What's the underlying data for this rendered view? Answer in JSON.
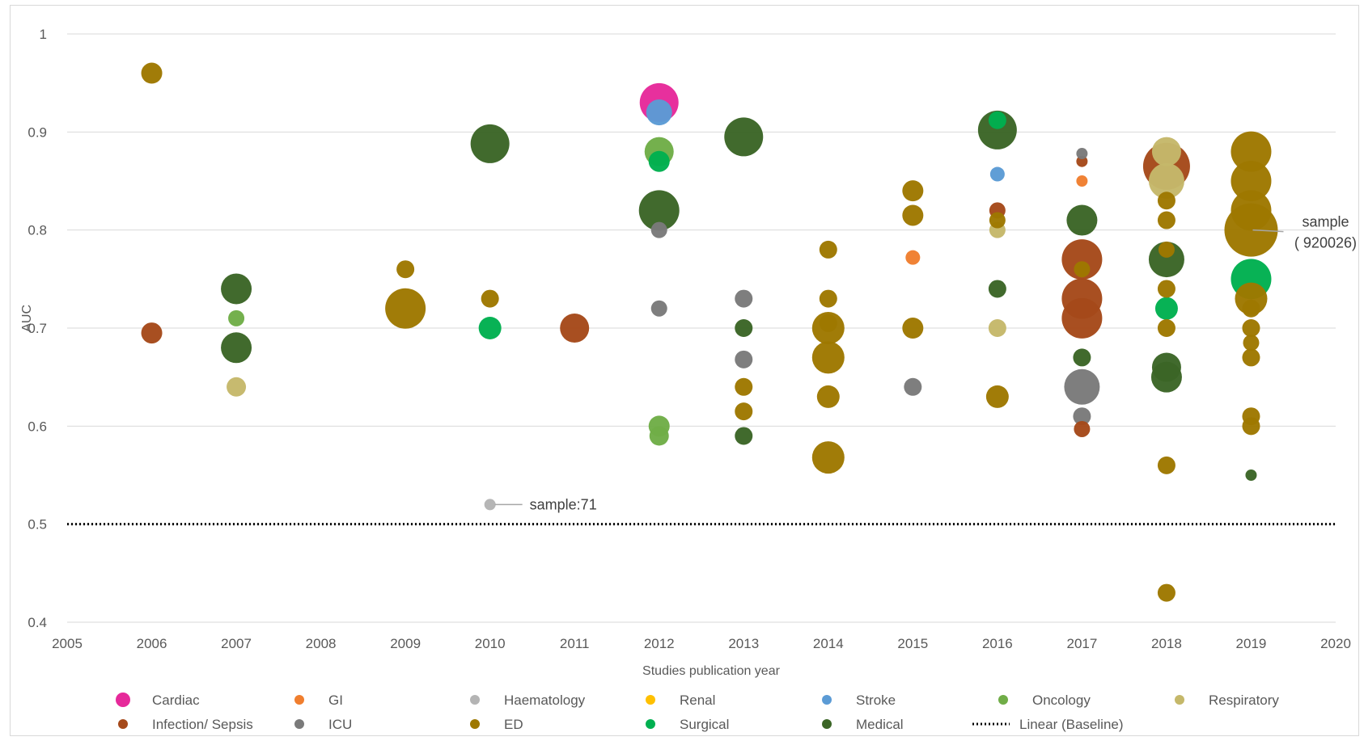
{
  "chart_data": {
    "type": "scatter",
    "xlabel": "Studies publication year",
    "ylabel": "AUC",
    "xlim": [
      2005,
      2020
    ],
    "ylim": [
      0.4,
      1.0
    ],
    "x_ticks": [
      "2005",
      "2006",
      "2007",
      "2008",
      "2009",
      "2010",
      "2011",
      "2012",
      "2013",
      "2014",
      "2015",
      "2016",
      "2017",
      "2018",
      "2019",
      "2020"
    ],
    "y_ticks": [
      "0.4",
      "0.5",
      "0.6",
      "0.7",
      "0.8",
      "0.9",
      "1"
    ],
    "grid": true,
    "legend_position": "bottom",
    "baseline": {
      "name": "Linear (Baseline)",
      "value": 0.5,
      "color": "#000000"
    },
    "series": [
      {
        "name": "Cardiac",
        "color": "#e6299a",
        "points": [
          {
            "x": 2012,
            "y": 0.93,
            "size": 48
          }
        ]
      },
      {
        "name": "GI",
        "color": "#f07e2e",
        "points": [
          {
            "x": 2015,
            "y": 0.772,
            "size": 18
          },
          {
            "x": 2017,
            "y": 0.85,
            "size": 14
          }
        ]
      },
      {
        "name": "Haematology",
        "color": "#b4b4b4",
        "points": [
          {
            "x": 2010,
            "y": 0.52,
            "size": 14
          }
        ]
      },
      {
        "name": "Renal",
        "color": "#ffc000",
        "points": []
      },
      {
        "name": "Stroke",
        "color": "#5b9bd5",
        "points": [
          {
            "x": 2012,
            "y": 0.92,
            "size": 32
          },
          {
            "x": 2016,
            "y": 0.857,
            "size": 18
          }
        ]
      },
      {
        "name": "Oncology",
        "color": "#70ad47",
        "points": [
          {
            "x": 2007,
            "y": 0.71,
            "size": 20
          },
          {
            "x": 2012,
            "y": 0.88,
            "size": 36
          },
          {
            "x": 2012,
            "y": 0.6,
            "size": 26
          },
          {
            "x": 2012,
            "y": 0.59,
            "size": 24
          }
        ]
      },
      {
        "name": "Respiratory",
        "color": "#c5b86a",
        "points": [
          {
            "x": 2007,
            "y": 0.64,
            "size": 24
          },
          {
            "x": 2016,
            "y": 0.8,
            "size": 20
          },
          {
            "x": 2016,
            "y": 0.7,
            "size": 22
          },
          {
            "x": 2018,
            "y": 0.88,
            "size": 36
          },
          {
            "x": 2018,
            "y": 0.85,
            "size": 44
          }
        ]
      },
      {
        "name": "Infection/ Sepsis",
        "color": "#a5491a",
        "points": [
          {
            "x": 2006,
            "y": 0.695,
            "size": 26
          },
          {
            "x": 2011,
            "y": 0.7,
            "size": 36
          },
          {
            "x": 2016,
            "y": 0.82,
            "size": 20
          },
          {
            "x": 2017,
            "y": 0.87,
            "size": 14
          },
          {
            "x": 2017,
            "y": 0.77,
            "size": 50
          },
          {
            "x": 2017,
            "y": 0.73,
            "size": 50
          },
          {
            "x": 2017,
            "y": 0.71,
            "size": 50
          },
          {
            "x": 2017,
            "y": 0.597,
            "size": 20
          },
          {
            "x": 2018,
            "y": 0.865,
            "size": 58
          }
        ]
      },
      {
        "name": "ICU",
        "color": "#7a7a7a",
        "points": [
          {
            "x": 2012,
            "y": 0.8,
            "size": 20
          },
          {
            "x": 2012,
            "y": 0.72,
            "size": 20
          },
          {
            "x": 2013,
            "y": 0.73,
            "size": 22
          },
          {
            "x": 2013,
            "y": 0.668,
            "size": 22
          },
          {
            "x": 2015,
            "y": 0.64,
            "size": 22
          },
          {
            "x": 2017,
            "y": 0.878,
            "size": 14
          },
          {
            "x": 2017,
            "y": 0.64,
            "size": 44
          },
          {
            "x": 2017,
            "y": 0.61,
            "size": 22
          }
        ]
      },
      {
        "name": "ED",
        "color": "#9e7800",
        "points": [
          {
            "x": 2006,
            "y": 0.96,
            "size": 26
          },
          {
            "x": 2009,
            "y": 0.76,
            "size": 22
          },
          {
            "x": 2009,
            "y": 0.72,
            "size": 50
          },
          {
            "x": 2010,
            "y": 0.73,
            "size": 22
          },
          {
            "x": 2013,
            "y": 0.64,
            "size": 22
          },
          {
            "x": 2013,
            "y": 0.615,
            "size": 22
          },
          {
            "x": 2014,
            "y": 0.78,
            "size": 22
          },
          {
            "x": 2014,
            "y": 0.73,
            "size": 22
          },
          {
            "x": 2014,
            "y": 0.705,
            "size": 22
          },
          {
            "x": 2014,
            "y": 0.7,
            "size": 40
          },
          {
            "x": 2014,
            "y": 0.67,
            "size": 40
          },
          {
            "x": 2014,
            "y": 0.63,
            "size": 28
          },
          {
            "x": 2014,
            "y": 0.568,
            "size": 40
          },
          {
            "x": 2015,
            "y": 0.84,
            "size": 26
          },
          {
            "x": 2015,
            "y": 0.815,
            "size": 26
          },
          {
            "x": 2015,
            "y": 0.7,
            "size": 26
          },
          {
            "x": 2016,
            "y": 0.81,
            "size": 20
          },
          {
            "x": 2016,
            "y": 0.63,
            "size": 28
          },
          {
            "x": 2017,
            "y": 0.76,
            "size": 20
          },
          {
            "x": 2018,
            "y": 0.83,
            "size": 22
          },
          {
            "x": 2018,
            "y": 0.81,
            "size": 22
          },
          {
            "x": 2018,
            "y": 0.78,
            "size": 20
          },
          {
            "x": 2018,
            "y": 0.74,
            "size": 22
          },
          {
            "x": 2018,
            "y": 0.7,
            "size": 22
          },
          {
            "x": 2018,
            "y": 0.56,
            "size": 22
          },
          {
            "x": 2018,
            "y": 0.43,
            "size": 22
          },
          {
            "x": 2019,
            "y": 0.88,
            "size": 50
          },
          {
            "x": 2019,
            "y": 0.85,
            "size": 50
          },
          {
            "x": 2019,
            "y": 0.82,
            "size": 50
          },
          {
            "x": 2019,
            "y": 0.8,
            "size": 66
          },
          {
            "x": 2019,
            "y": 0.73,
            "size": 40
          },
          {
            "x": 2019,
            "y": 0.72,
            "size": 22
          },
          {
            "x": 2019,
            "y": 0.7,
            "size": 22
          },
          {
            "x": 2019,
            "y": 0.685,
            "size": 20
          },
          {
            "x": 2019,
            "y": 0.67,
            "size": 22
          },
          {
            "x": 2019,
            "y": 0.61,
            "size": 22
          },
          {
            "x": 2019,
            "y": 0.6,
            "size": 22
          }
        ]
      },
      {
        "name": "Surgical",
        "color": "#00b050",
        "points": [
          {
            "x": 2010,
            "y": 0.7,
            "size": 28
          },
          {
            "x": 2012,
            "y": 0.87,
            "size": 26
          },
          {
            "x": 2016,
            "y": 0.912,
            "size": 22
          },
          {
            "x": 2018,
            "y": 0.72,
            "size": 28
          },
          {
            "x": 2019,
            "y": 0.75,
            "size": 50
          }
        ]
      },
      {
        "name": "Medical",
        "color": "#3b6526",
        "points": [
          {
            "x": 2007,
            "y": 0.74,
            "size": 38
          },
          {
            "x": 2007,
            "y": 0.68,
            "size": 38
          },
          {
            "x": 2010,
            "y": 0.888,
            "size": 48
          },
          {
            "x": 2012,
            "y": 0.82,
            "size": 50
          },
          {
            "x": 2013,
            "y": 0.895,
            "size": 48
          },
          {
            "x": 2013,
            "y": 0.7,
            "size": 22
          },
          {
            "x": 2013,
            "y": 0.59,
            "size": 22
          },
          {
            "x": 2016,
            "y": 0.902,
            "size": 48
          },
          {
            "x": 2016,
            "y": 0.74,
            "size": 22
          },
          {
            "x": 2017,
            "y": 0.81,
            "size": 38
          },
          {
            "x": 2017,
            "y": 0.67,
            "size": 22
          },
          {
            "x": 2018,
            "y": 0.77,
            "size": 44
          },
          {
            "x": 2018,
            "y": 0.66,
            "size": 36
          },
          {
            "x": 2018,
            "y": 0.65,
            "size": 38
          },
          {
            "x": 2019,
            "y": 0.55,
            "size": 14
          }
        ]
      }
    ],
    "annotations": [
      {
        "text": "sample:71",
        "x": 2010,
        "y": 0.52
      },
      {
        "text": "sample",
        "text2": "( 920026)",
        "x": 2019,
        "y": 0.8
      }
    ]
  }
}
